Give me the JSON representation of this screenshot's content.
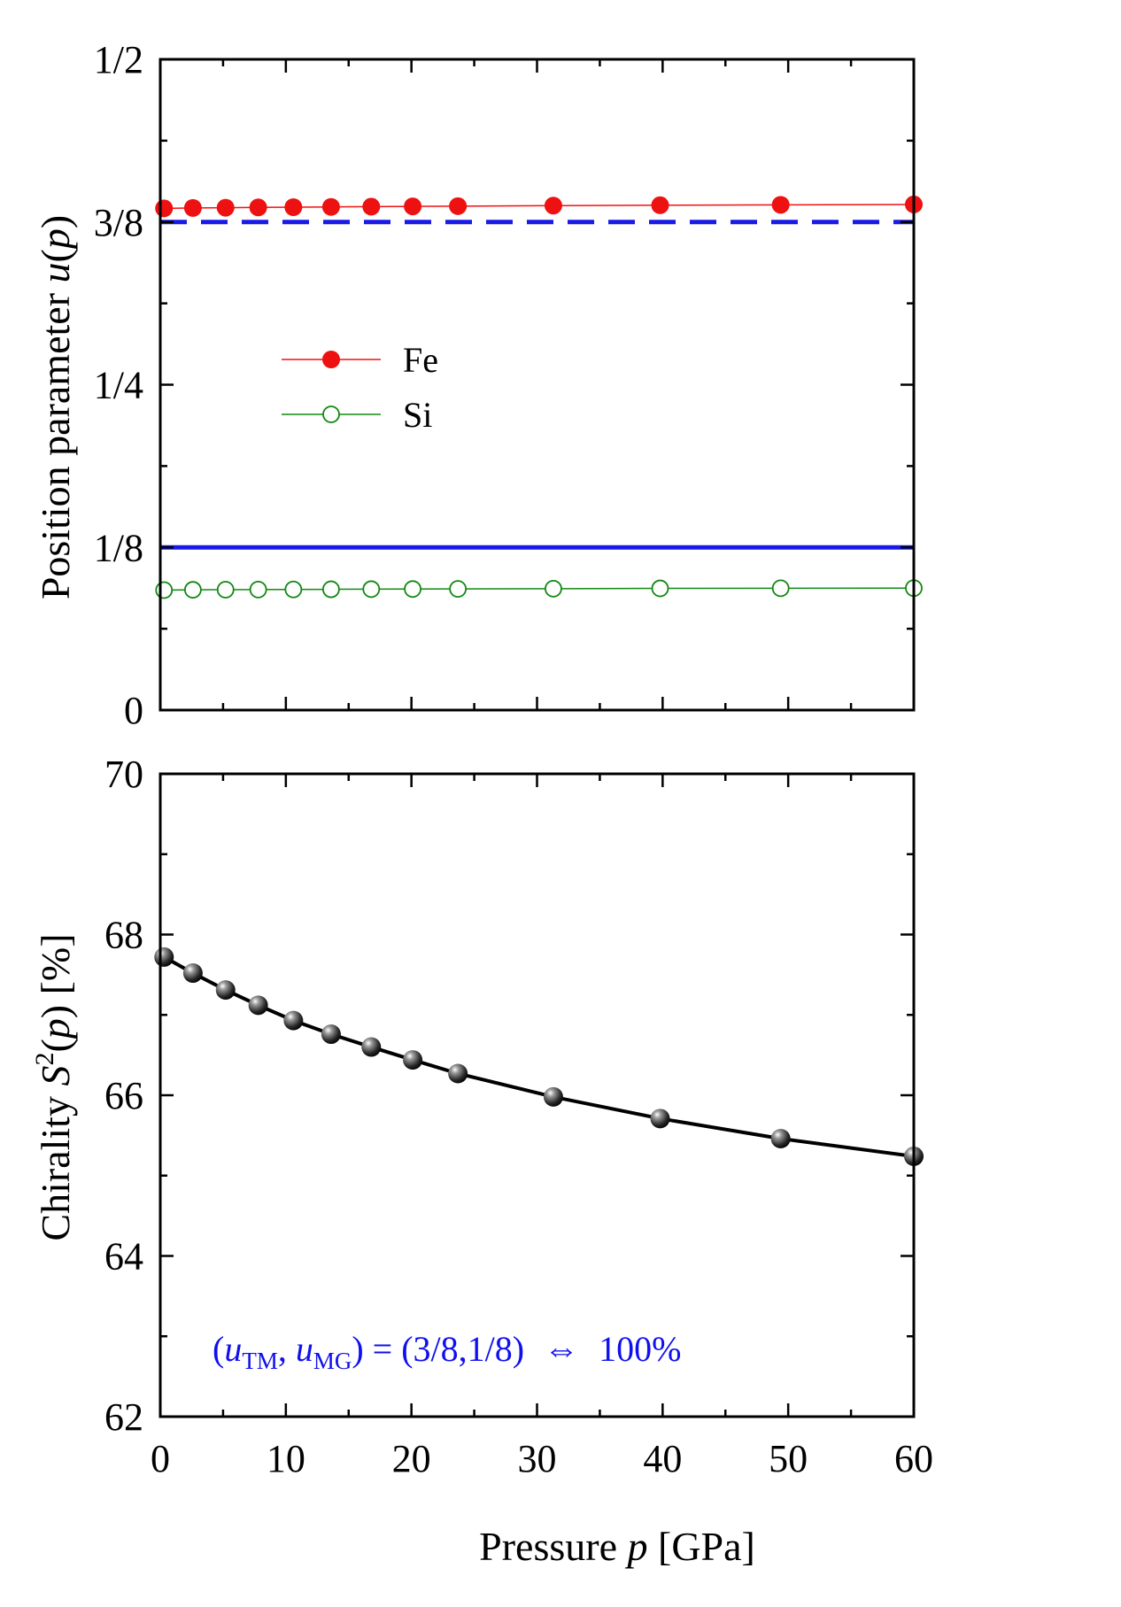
{
  "chart_data": [
    {
      "type": "line",
      "panel": "top",
      "ylabel": "Position parameter",
      "ylabel_symbol": "u",
      "ylabel_arg": "p",
      "xlabel": "",
      "xlim": [
        0,
        60
      ],
      "ylim": [
        0,
        0.5
      ],
      "yticks": [
        {
          "value": 0,
          "label": "0"
        },
        {
          "value": 0.125,
          "label": "1/8"
        },
        {
          "value": 0.25,
          "label": "1/4"
        },
        {
          "value": 0.375,
          "label": "3/8"
        },
        {
          "value": 0.5,
          "label": "1/2"
        }
      ],
      "legend": {
        "placement": "middle-left",
        "entries": [
          "Fe",
          "Si"
        ]
      },
      "x": [
        0.3,
        2.6,
        5.2,
        7.8,
        10.6,
        13.6,
        16.8,
        20.1,
        23.7,
        31.3,
        39.8,
        49.4,
        60.0
      ],
      "series": [
        {
          "name": "Fe",
          "color": "#ee1111",
          "marker": "filled-circle",
          "values": [
            0.3855,
            0.3858,
            0.386,
            0.3862,
            0.3864,
            0.3866,
            0.3868,
            0.387,
            0.3872,
            0.3876,
            0.3879,
            0.3882,
            0.3885
          ]
        },
        {
          "name": "Si",
          "color": "#118811",
          "marker": "open-circle",
          "values": [
            0.0922,
            0.0924,
            0.0925,
            0.0926,
            0.0927,
            0.0928,
            0.0929,
            0.093,
            0.0931,
            0.0933,
            0.0935,
            0.0936,
            0.0937
          ]
        }
      ],
      "reference_lines": [
        {
          "value": 0.375,
          "style": "dashed",
          "color": "#1a1ae6"
        },
        {
          "value": 0.125,
          "style": "solid",
          "color": "#1a1ae6"
        }
      ]
    },
    {
      "type": "line",
      "panel": "bottom",
      "ylabel": "Chirality",
      "ylabel_symbol": "S",
      "ylabel_sup": "2",
      "ylabel_arg": "p",
      "ylabel_unit": "[%]",
      "xlabel": "Pressure",
      "xlabel_symbol": "p",
      "xlabel_unit": "[GPa]",
      "xlim": [
        0,
        60
      ],
      "ylim": [
        62,
        70
      ],
      "xticks": [
        "0",
        "10",
        "20",
        "30",
        "40",
        "50",
        "60"
      ],
      "yticks": [
        "62",
        "64",
        "66",
        "68",
        "70"
      ],
      "x": [
        0.3,
        2.6,
        5.2,
        7.8,
        10.6,
        13.6,
        16.8,
        20.1,
        23.7,
        31.3,
        39.8,
        49.4,
        60.0
      ],
      "series": [
        {
          "name": "S2",
          "color": "#000000",
          "marker": "sphere",
          "values": [
            67.72,
            67.52,
            67.31,
            67.12,
            66.93,
            66.76,
            66.6,
            66.44,
            66.27,
            65.98,
            65.71,
            65.46,
            65.24
          ]
        }
      ],
      "annotation": {
        "open": "(",
        "u1": "u",
        "sub1": "TM",
        "comma": ", ",
        "u2": "u",
        "sub2": "MG",
        "rest": ") = (3/8,1/8)",
        "arrow": "⇔",
        "value": "100%",
        "color": "#1010ee"
      }
    }
  ]
}
